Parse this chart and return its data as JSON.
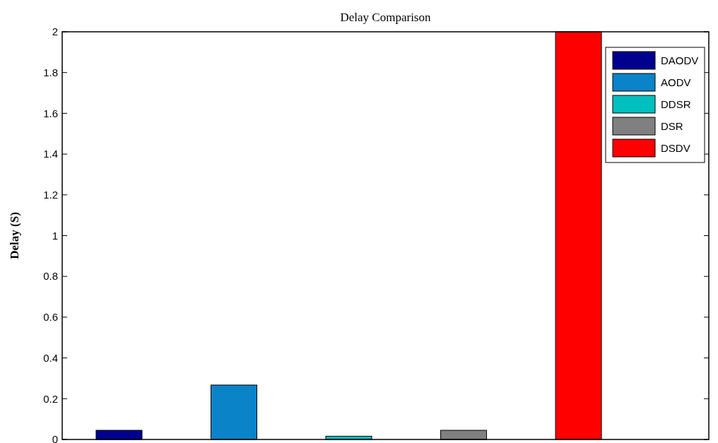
{
  "chart_data": {
    "type": "bar",
    "title": "Delay Comparison",
    "ylabel": "Delay (S)",
    "categories": [
      null,
      null,
      null,
      null,
      null
    ],
    "stacked": true,
    "series": [
      {
        "name": "DAODV",
        "color": "#00008f",
        "values": [
          0.045,
          null,
          null,
          null,
          null
        ]
      },
      {
        "name": "AODV",
        "color": "#0a83c8",
        "values": [
          null,
          0.267,
          null,
          null,
          null
        ]
      },
      {
        "name": "DDSR",
        "color": "#00bfbf",
        "values": [
          null,
          null,
          0.016,
          null,
          null
        ]
      },
      {
        "name": "DSR",
        "color": "#808080",
        "values": [
          null,
          null,
          null,
          0.045,
          null
        ]
      },
      {
        "name": "DSDV",
        "color": "#ff0000",
        "values": [
          null,
          null,
          null,
          null,
          2
        ]
      }
    ],
    "ylim": [
      0,
      2
    ],
    "yticks": [
      0,
      0.2,
      0.4,
      0.6,
      0.8,
      1,
      1.2,
      1.4,
      1.6,
      1.8,
      2
    ],
    "legend": "top right",
    "grid": false
  }
}
